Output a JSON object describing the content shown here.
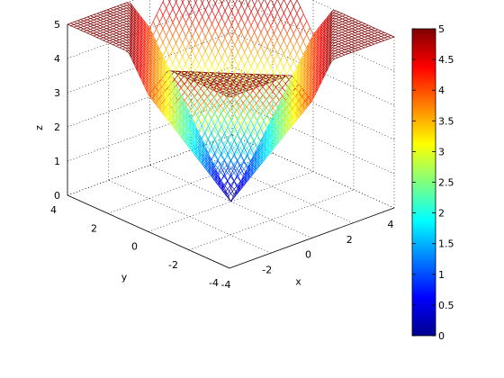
{
  "chart_data": {
    "type": "surface-mesh",
    "function": "z = |x| + |y| (mesh over 3D axes)",
    "xlabel": "x",
    "ylabel": "y",
    "zlabel": "z",
    "xlim": [
      -4,
      4
    ],
    "ylim": [
      -4,
      4
    ],
    "zlim": [
      0,
      5
    ],
    "x_ticks": [
      -4,
      -2,
      0,
      2,
      4
    ],
    "y_ticks": [
      -4,
      -2,
      0,
      2,
      4
    ],
    "z_ticks": [
      0,
      1,
      2,
      3,
      4,
      5
    ],
    "x_tick_labels": [
      "-4",
      "-2",
      "0",
      "2",
      "4"
    ],
    "y_tick_labels": [
      "-4",
      "-2",
      "0",
      "2",
      "4"
    ],
    "z_tick_labels": [
      "0",
      "1",
      "2",
      "3",
      "4",
      "5"
    ],
    "grid": true,
    "colormap": "jet",
    "colorbar": {
      "range": [
        0,
        5
      ],
      "ticks": [
        0,
        0.5,
        1,
        1.5,
        2,
        2.5,
        3,
        3.5,
        4,
        4.5,
        5
      ],
      "tick_labels": [
        "0",
        "0.5",
        "1",
        "1.5",
        "2",
        "2.5",
        "3",
        "3.5",
        "4",
        "4.5",
        "5"
      ],
      "placement": "right"
    },
    "grid_resolution": 51
  }
}
